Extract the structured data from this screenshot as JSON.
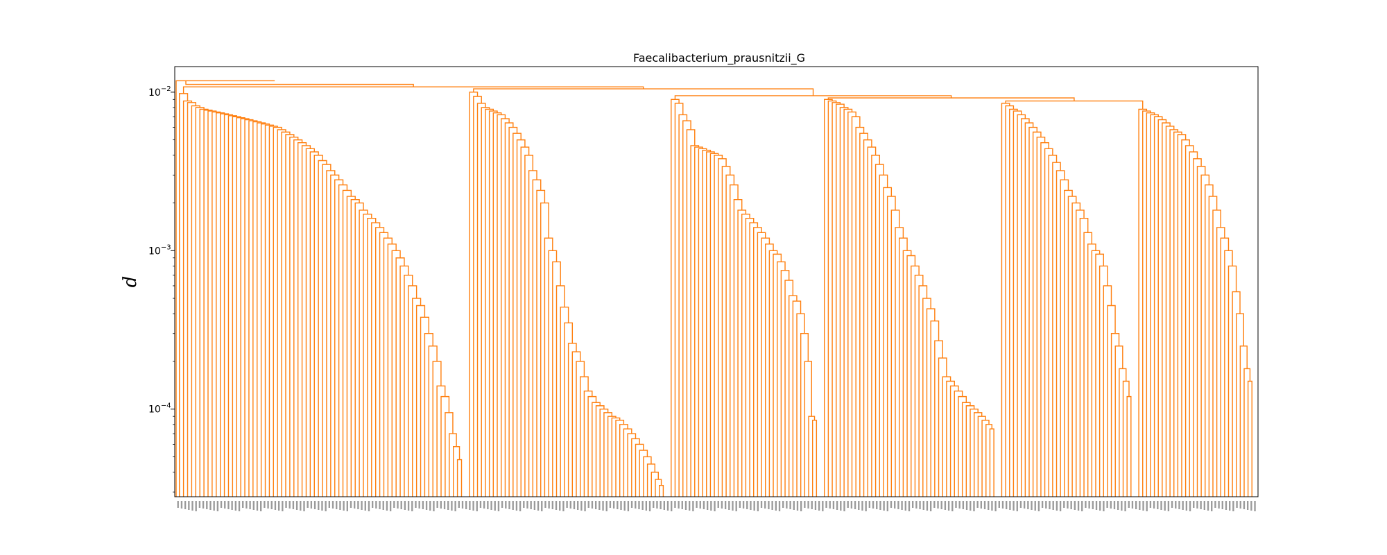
{
  "chart_data": {
    "type": "dendrogram",
    "title": "Faecalibacterium_prausnitzii_G",
    "xlabel": "",
    "ylabel": "d",
    "yscale": "log",
    "ylim": [
      2.8e-05,
      0.0145
    ],
    "yticks": [
      {
        "value": 0.0001,
        "base": "10",
        "exp": "−4"
      },
      {
        "value": 0.001,
        "base": "10",
        "exp": "−3"
      },
      {
        "value": 0.01,
        "base": "10",
        "exp": "−2"
      }
    ],
    "line_color": "#ff7f0e",
    "grid": false,
    "clusters": [
      {
        "span": 72,
        "top": 0.0108,
        "heights": [
          0.0098,
          0.0088,
          0.0086,
          0.0082,
          0.008,
          0.0078,
          0.0077,
          0.0076,
          0.0075,
          0.0074,
          0.0073,
          0.0072,
          0.0071,
          0.007,
          0.0069,
          0.0068,
          0.0067,
          0.0066,
          0.0065,
          0.0064,
          0.0063,
          0.0062,
          0.0061,
          0.006,
          0.0058,
          0.0056,
          0.0054,
          0.0052,
          0.005,
          0.0048,
          0.0046,
          0.0044,
          0.0042,
          0.004,
          0.0037,
          0.0035,
          0.0032,
          0.003,
          0.0028,
          0.0026,
          0.0024,
          0.0022,
          0.0021,
          0.002,
          0.0018,
          0.0017,
          0.0016,
          0.0015,
          0.0014,
          0.0013,
          0.0012,
          0.0011,
          0.001,
          0.0009,
          0.0008,
          0.0007,
          0.0006,
          0.0005,
          0.00045,
          0.00038,
          0.0003,
          0.00025,
          0.0002,
          0.00014,
          0.00012,
          9.5e-05,
          7e-05,
          5.8e-05,
          4.8e-05
        ]
      },
      {
        "span": 50,
        "top": 0.0105,
        "heights": [
          0.01,
          0.0094,
          0.0085,
          0.008,
          0.0078,
          0.0076,
          0.0074,
          0.0072,
          0.0068,
          0.0064,
          0.006,
          0.0055,
          0.005,
          0.0045,
          0.004,
          0.0032,
          0.0028,
          0.0024,
          0.002,
          0.0012,
          0.001,
          0.00085,
          0.0006,
          0.00044,
          0.00035,
          0.00026,
          0.00023,
          0.0002,
          0.00016,
          0.00013,
          0.00012,
          0.00011,
          0.000105,
          0.0001,
          9.5e-05,
          9e-05,
          8.8e-05,
          8.5e-05,
          8e-05,
          7.5e-05,
          7e-05,
          6.5e-05,
          6e-05,
          5.5e-05,
          5e-05,
          4.5e-05,
          4e-05,
          3.6e-05,
          3.3e-05
        ]
      },
      {
        "span": 38,
        "top": 0.0095,
        "heights": [
          0.009,
          0.0085,
          0.0072,
          0.0066,
          0.0058,
          0.0046,
          0.0045,
          0.0044,
          0.0043,
          0.0042,
          0.0041,
          0.004,
          0.0038,
          0.0034,
          0.003,
          0.0026,
          0.0021,
          0.0018,
          0.0017,
          0.0016,
          0.0015,
          0.0014,
          0.0013,
          0.0012,
          0.0011,
          0.001,
          0.00095,
          0.00085,
          0.00075,
          0.00065,
          0.00052,
          0.00048,
          0.0004,
          0.0003,
          0.0002,
          9e-05,
          8.5e-05
        ]
      },
      {
        "span": 44,
        "top": 0.0092,
        "heights": [
          0.009,
          0.0088,
          0.0086,
          0.0084,
          0.008,
          0.0078,
          0.0075,
          0.007,
          0.006,
          0.0055,
          0.005,
          0.0045,
          0.004,
          0.0035,
          0.003,
          0.0025,
          0.0022,
          0.0018,
          0.0014,
          0.0012,
          0.001,
          0.00093,
          0.0008,
          0.0007,
          0.0006,
          0.0005,
          0.00043,
          0.00036,
          0.00027,
          0.00021,
          0.00016,
          0.00015,
          0.00014,
          0.00013,
          0.00012,
          0.00011,
          0.000105,
          0.0001,
          9.5e-05,
          9e-05,
          8.5e-05,
          8e-05,
          7.5e-05
        ]
      },
      {
        "span": 34,
        "top": 0.0088,
        "heights": [
          0.0085,
          0.0082,
          0.0078,
          0.0076,
          0.0072,
          0.0068,
          0.0064,
          0.006,
          0.0056,
          0.0052,
          0.0048,
          0.0044,
          0.004,
          0.0036,
          0.0032,
          0.0028,
          0.0024,
          0.0022,
          0.002,
          0.0018,
          0.0016,
          0.0013,
          0.0011,
          0.001,
          0.00095,
          0.0008,
          0.0006,
          0.00045,
          0.0003,
          0.00025,
          0.00018,
          0.00015,
          0.00012
        ]
      },
      {
        "span": 30,
        "top": 0.008,
        "heights": [
          0.0078,
          0.0076,
          0.0074,
          0.0072,
          0.007,
          0.0067,
          0.0064,
          0.0061,
          0.0058,
          0.0056,
          0.0054,
          0.005,
          0.0046,
          0.0042,
          0.0038,
          0.0034,
          0.003,
          0.0026,
          0.0022,
          0.0018,
          0.0014,
          0.0012,
          0.001,
          0.0008,
          0.00055,
          0.0004,
          0.00025,
          0.00018,
          0.00015
        ]
      }
    ]
  }
}
